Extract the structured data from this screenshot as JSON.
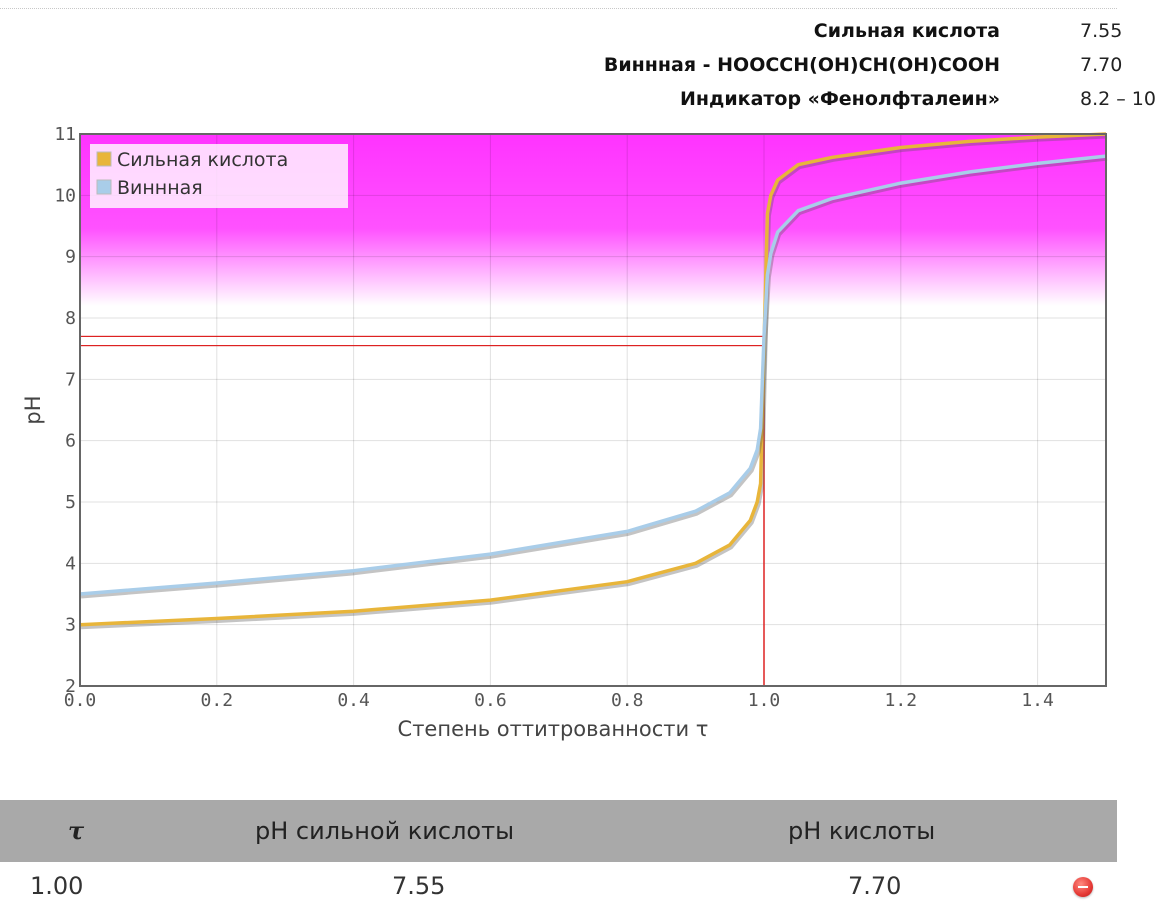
{
  "info": [
    {
      "label": "Сильная кислота",
      "value": "7.55"
    },
    {
      "label": "Виннная - HOOCCH(OH)CH(OH)COOH",
      "value": "7.70"
    },
    {
      "label": "Индикатор «Фенолфталеин»",
      "value": "8.2 – 10"
    }
  ],
  "chart_data": {
    "type": "line",
    "xlabel": "Степень оттитрованности τ",
    "ylabel": "pH",
    "xlim": [
      0,
      1.5
    ],
    "ylim": [
      2,
      11
    ],
    "xticks": [
      "0.0",
      "0.2",
      "0.4",
      "0.6",
      "0.8",
      "1.0",
      "1.2",
      "1.4"
    ],
    "yticks": [
      "2",
      "3",
      "4",
      "5",
      "6",
      "7",
      "8",
      "9",
      "10",
      "11"
    ],
    "grid": true,
    "legend_position": "top-left",
    "indicator_band": {
      "from": 8.2,
      "to": 10,
      "color": "#ff33ff"
    },
    "equivalence_marks": {
      "x": 1.0,
      "y": [
        7.55,
        7.7
      ],
      "color": "#dd2222"
    },
    "series": [
      {
        "name": "Сильная кислота",
        "color": "#e8b53a",
        "x": [
          0,
          0.2,
          0.4,
          0.6,
          0.8,
          0.9,
          0.95,
          0.98,
          0.99,
          0.995,
          1.0,
          1.005,
          1.01,
          1.02,
          1.05,
          1.1,
          1.2,
          1.3,
          1.4,
          1.5
        ],
        "y": [
          3.0,
          3.1,
          3.22,
          3.4,
          3.7,
          4.0,
          4.3,
          4.7,
          5.0,
          5.3,
          7.55,
          9.7,
          10.0,
          10.25,
          10.5,
          10.62,
          10.78,
          10.88,
          10.95,
          11.0
        ]
      },
      {
        "name": "Виннная",
        "color": "#a9cde9",
        "x": [
          0,
          0.2,
          0.4,
          0.6,
          0.8,
          0.9,
          0.95,
          0.98,
          0.99,
          0.995,
          1.0,
          1.005,
          1.01,
          1.02,
          1.05,
          1.1,
          1.2,
          1.3,
          1.4,
          1.5
        ],
        "y": [
          3.5,
          3.68,
          3.88,
          4.15,
          4.52,
          4.85,
          5.15,
          5.55,
          5.85,
          6.2,
          7.7,
          8.7,
          9.05,
          9.4,
          9.75,
          9.95,
          10.2,
          10.38,
          10.52,
          10.64
        ]
      }
    ]
  },
  "table": {
    "headers": [
      "τ",
      "pH сильной кислоты",
      "pH кислоты"
    ],
    "rows": [
      {
        "tau": "1.00",
        "strong": "7.55",
        "acid": "7.70"
      }
    ]
  }
}
